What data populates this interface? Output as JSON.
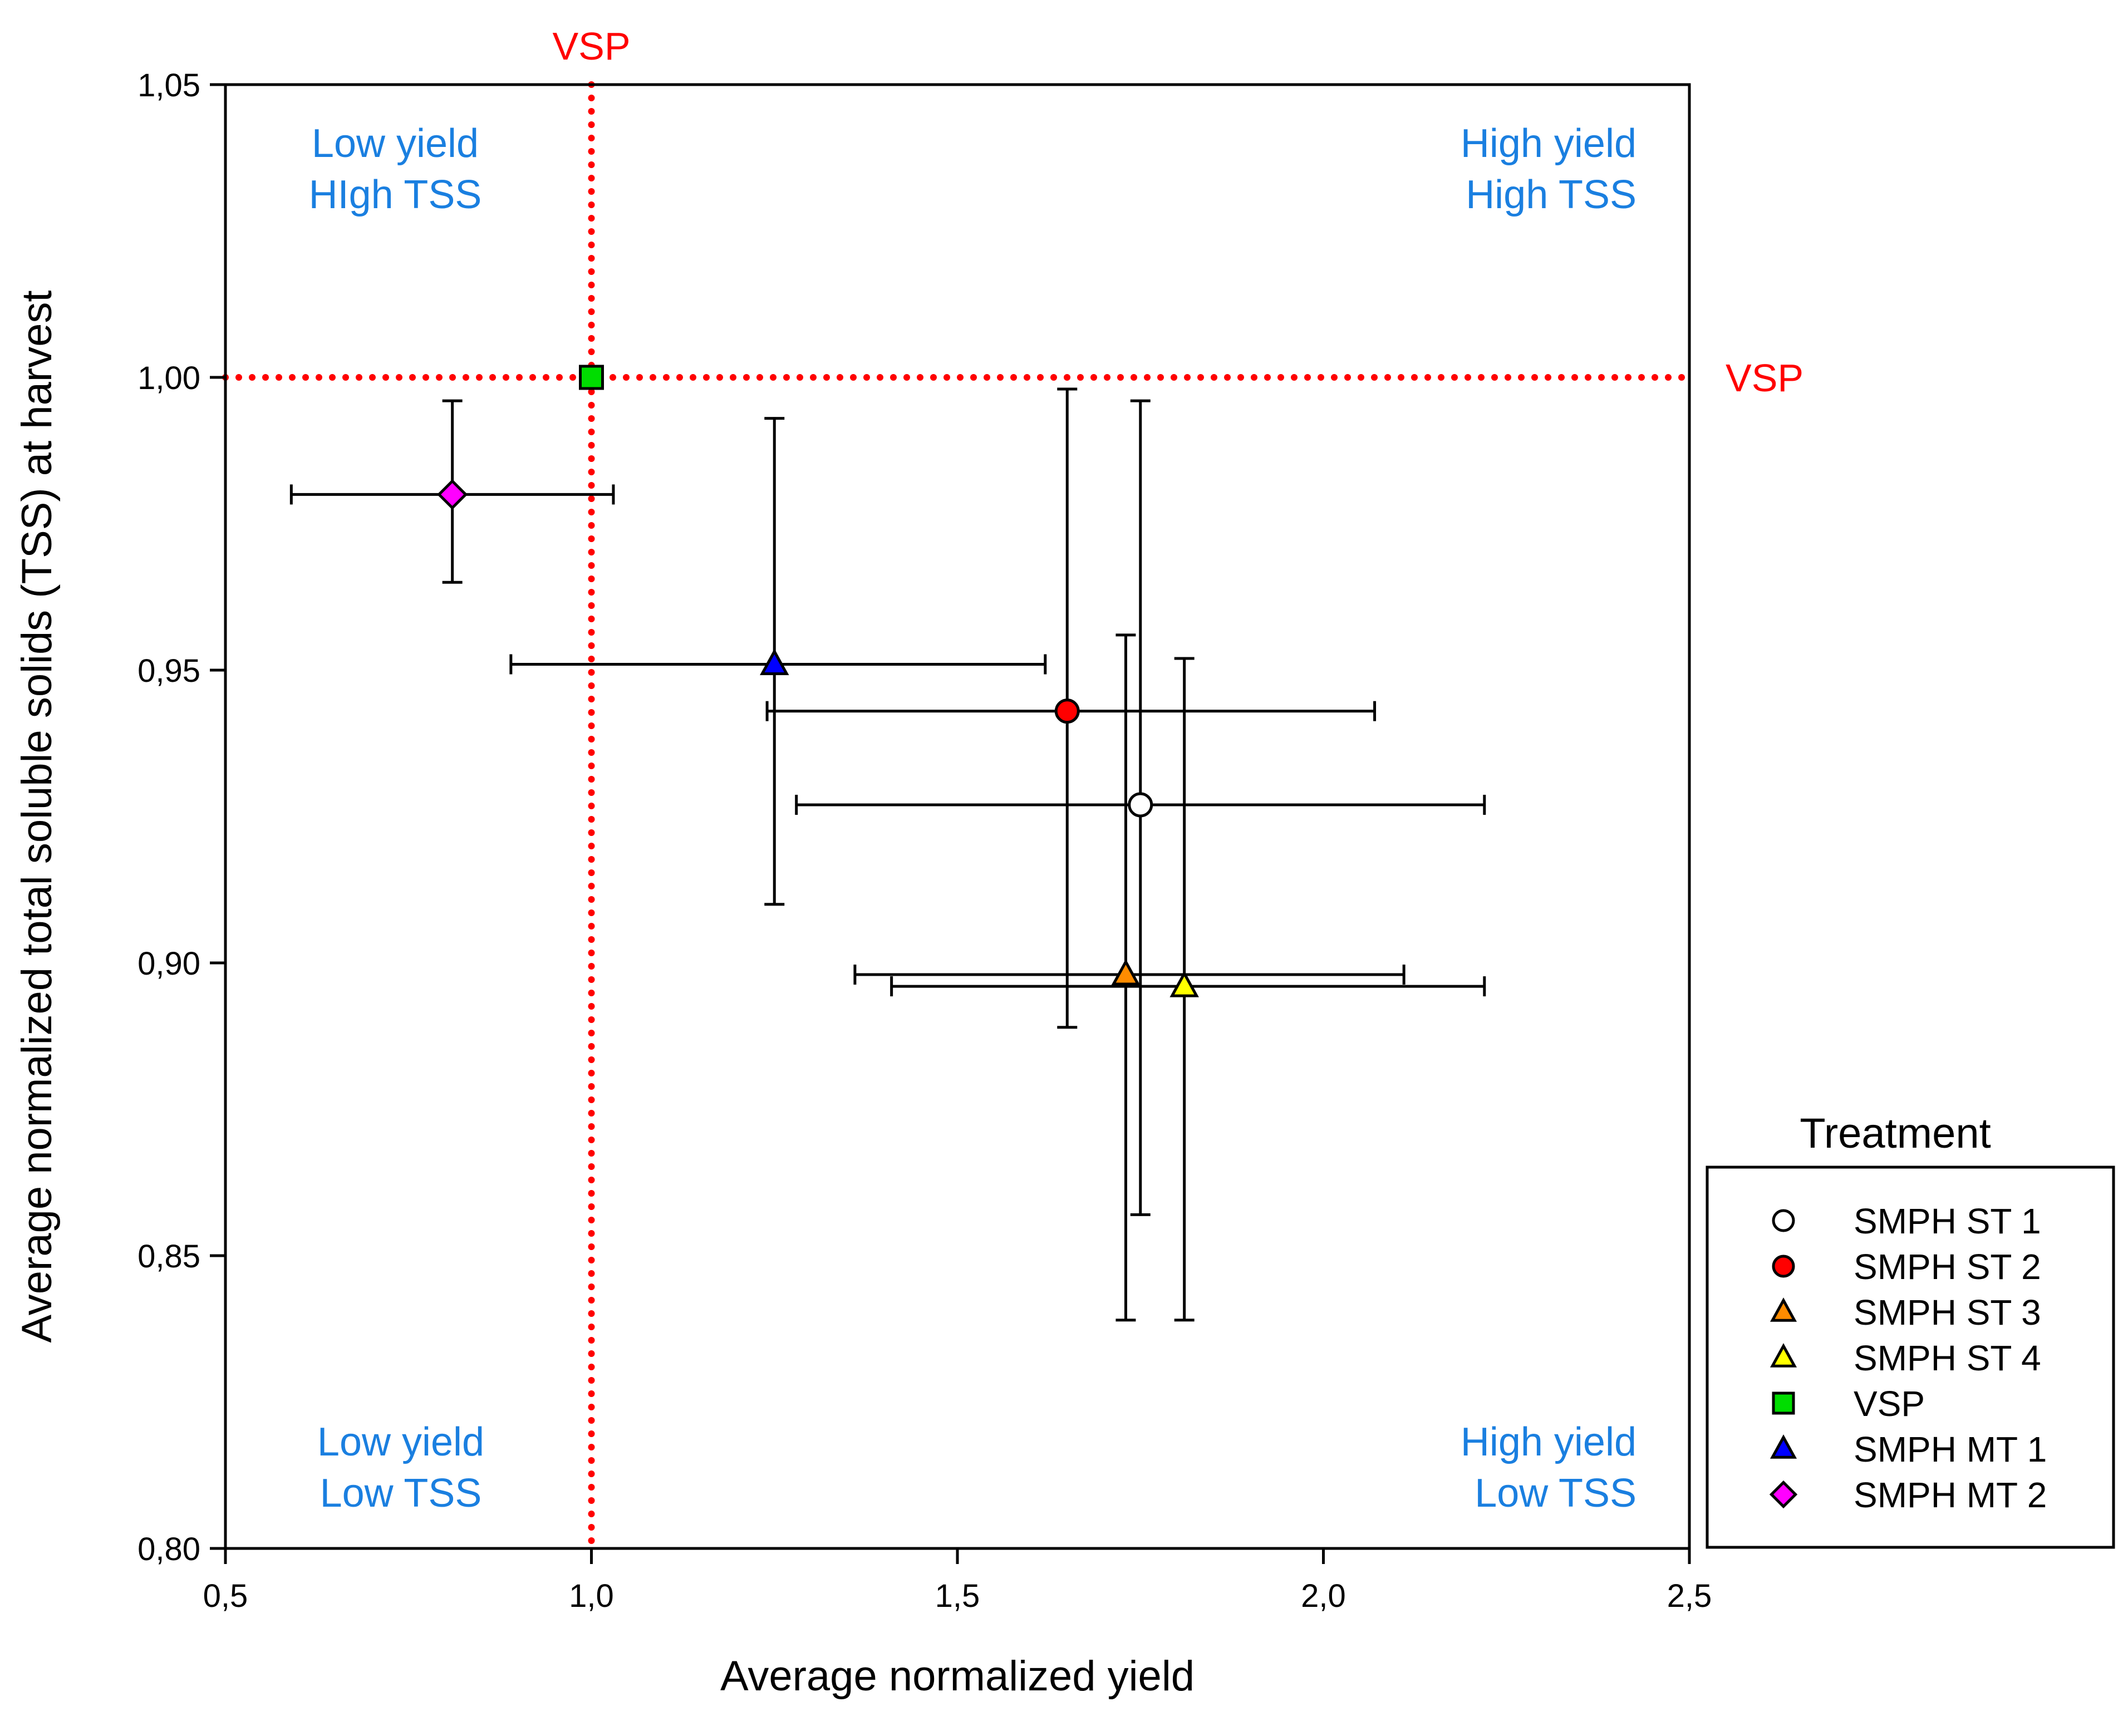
{
  "chart_data": {
    "type": "scatter",
    "title": "",
    "xlabel": "Average normalized yield",
    "ylabel": "Average normalized total soluble solids (TSS) at harvest",
    "xlim": [
      0.5,
      2.5
    ],
    "ylim": [
      0.8,
      1.05
    ],
    "x_ticks": [
      {
        "value": 0.5,
        "label": "0,5"
      },
      {
        "value": 1.0,
        "label": "1,0"
      },
      {
        "value": 1.5,
        "label": "1,5"
      },
      {
        "value": 2.0,
        "label": "2,0"
      },
      {
        "value": 2.5,
        "label": "2,5"
      }
    ],
    "y_ticks": [
      {
        "value": 0.8,
        "label": "0,80"
      },
      {
        "value": 0.85,
        "label": "0,85"
      },
      {
        "value": 0.9,
        "label": "0,90"
      },
      {
        "value": 0.95,
        "label": "0,95"
      },
      {
        "value": 1.0,
        "label": "1,00"
      },
      {
        "value": 1.05,
        "label": "1,05"
      }
    ],
    "grid": false,
    "reference_lines": [
      {
        "orientation": "vertical",
        "value": 1.0,
        "label": "VSP",
        "color": "#ff0000"
      },
      {
        "orientation": "horizontal",
        "value": 1.0,
        "label": "VSP",
        "color": "#ff0000"
      }
    ],
    "quadrant_labels": [
      {
        "position": "top-left",
        "lines": [
          "Low yield",
          "HIgh TSS"
        ]
      },
      {
        "position": "top-right",
        "lines": [
          "High yield",
          "High TSS"
        ]
      },
      {
        "position": "bottom-left",
        "lines": [
          "Low yield",
          "Low TSS"
        ]
      },
      {
        "position": "bottom-right",
        "lines": [
          "High yield",
          "Low TSS"
        ]
      }
    ],
    "quadrant_color": "#1a7fe0",
    "legend": {
      "title": "Treatment",
      "position": "right"
    },
    "series": [
      {
        "name": "SMPH ST 1",
        "marker": "circle",
        "color": "#ffffff",
        "x": 1.75,
        "y": 0.927,
        "x_err": [
          1.28,
          2.22
        ],
        "y_err": [
          0.857,
          0.996
        ]
      },
      {
        "name": "SMPH ST 2",
        "marker": "circle",
        "color": "#ff0000",
        "x": 1.65,
        "y": 0.943,
        "x_err": [
          1.24,
          2.07
        ],
        "y_err": [
          0.889,
          0.998
        ]
      },
      {
        "name": "SMPH ST 3",
        "marker": "triangle",
        "color": "#ff8c00",
        "x": 1.73,
        "y": 0.898,
        "x_err": [
          1.36,
          2.11
        ],
        "y_err": [
          0.839,
          0.956
        ]
      },
      {
        "name": "SMPH ST 4",
        "marker": "triangle",
        "color": "#ffff00",
        "x": 1.81,
        "y": 0.896,
        "x_err": [
          1.41,
          2.22
        ],
        "y_err": [
          0.839,
          0.952
        ]
      },
      {
        "name": "VSP",
        "marker": "square",
        "color": "#00dd00",
        "x": 1.0,
        "y": 1.0,
        "x_err": null,
        "y_err": null
      },
      {
        "name": "SMPH MT 1",
        "marker": "triangle",
        "color": "#0000ff",
        "x": 1.25,
        "y": 0.951,
        "x_err": [
          0.89,
          1.62
        ],
        "y_err": [
          0.91,
          0.993
        ]
      },
      {
        "name": "SMPH MT 2",
        "marker": "diamond",
        "color": "#ff00ff",
        "x": 0.81,
        "y": 0.98,
        "x_err": [
          0.59,
          1.03
        ],
        "y_err": [
          0.965,
          0.996
        ]
      }
    ]
  }
}
